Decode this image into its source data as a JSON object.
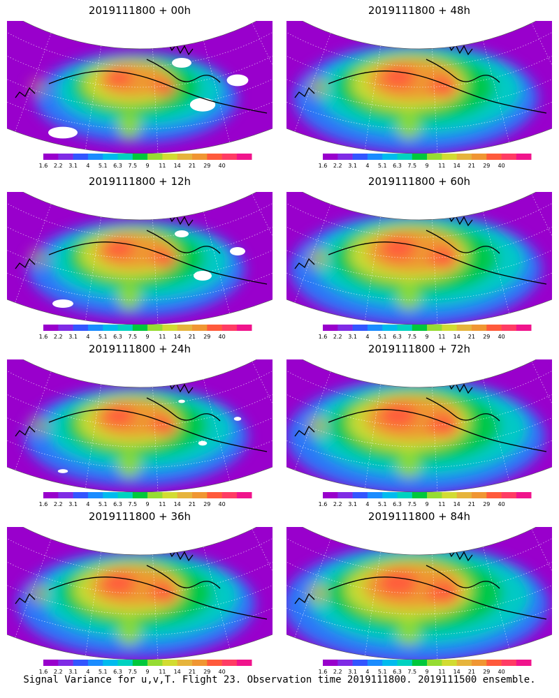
{
  "panels": [
    {
      "title": "2019111800 + 00h",
      "spread": 0.55,
      "intensity": 0.8,
      "void": 0.35
    },
    {
      "title": "2019111800 + 48h",
      "spread": 0.85,
      "intensity": 0.8,
      "void": 0.05
    },
    {
      "title": "2019111800 + 12h",
      "spread": 0.65,
      "intensity": 0.85,
      "void": 0.25
    },
    {
      "title": "2019111800 + 60h",
      "spread": 0.9,
      "intensity": 0.8,
      "void": 0.03
    },
    {
      "title": "2019111800 + 24h",
      "spread": 0.7,
      "intensity": 0.85,
      "void": 0.12
    },
    {
      "title": "2019111800 + 72h",
      "spread": 0.95,
      "intensity": 0.85,
      "void": 0.03
    },
    {
      "title": "2019111800 + 36h",
      "spread": 0.8,
      "intensity": 0.85,
      "void": 0.04
    },
    {
      "title": "2019111800 + 84h",
      "spread": 1.0,
      "intensity": 0.9,
      "void": 0.02
    }
  ],
  "colorbar": {
    "labels": [
      "1.6",
      "2.2",
      "3.1",
      "4",
      "5.1",
      "6.3",
      "7.5",
      "9",
      "11",
      "14",
      "21",
      "29",
      "40"
    ],
    "colors": [
      "#9900cc",
      "#7f2be5",
      "#3355ff",
      "#1a8cff",
      "#00bbee",
      "#00d2c0",
      "#00c83c",
      "#96dc32",
      "#d2dc32",
      "#e6b43c",
      "#f09632",
      "#ff5a3c",
      "#ff3c64",
      "#f0148c"
    ]
  },
  "footer": "Signal Variance for u,v,T. Flight 23. Observation time 2019111800. 2019111500 ensemble."
}
